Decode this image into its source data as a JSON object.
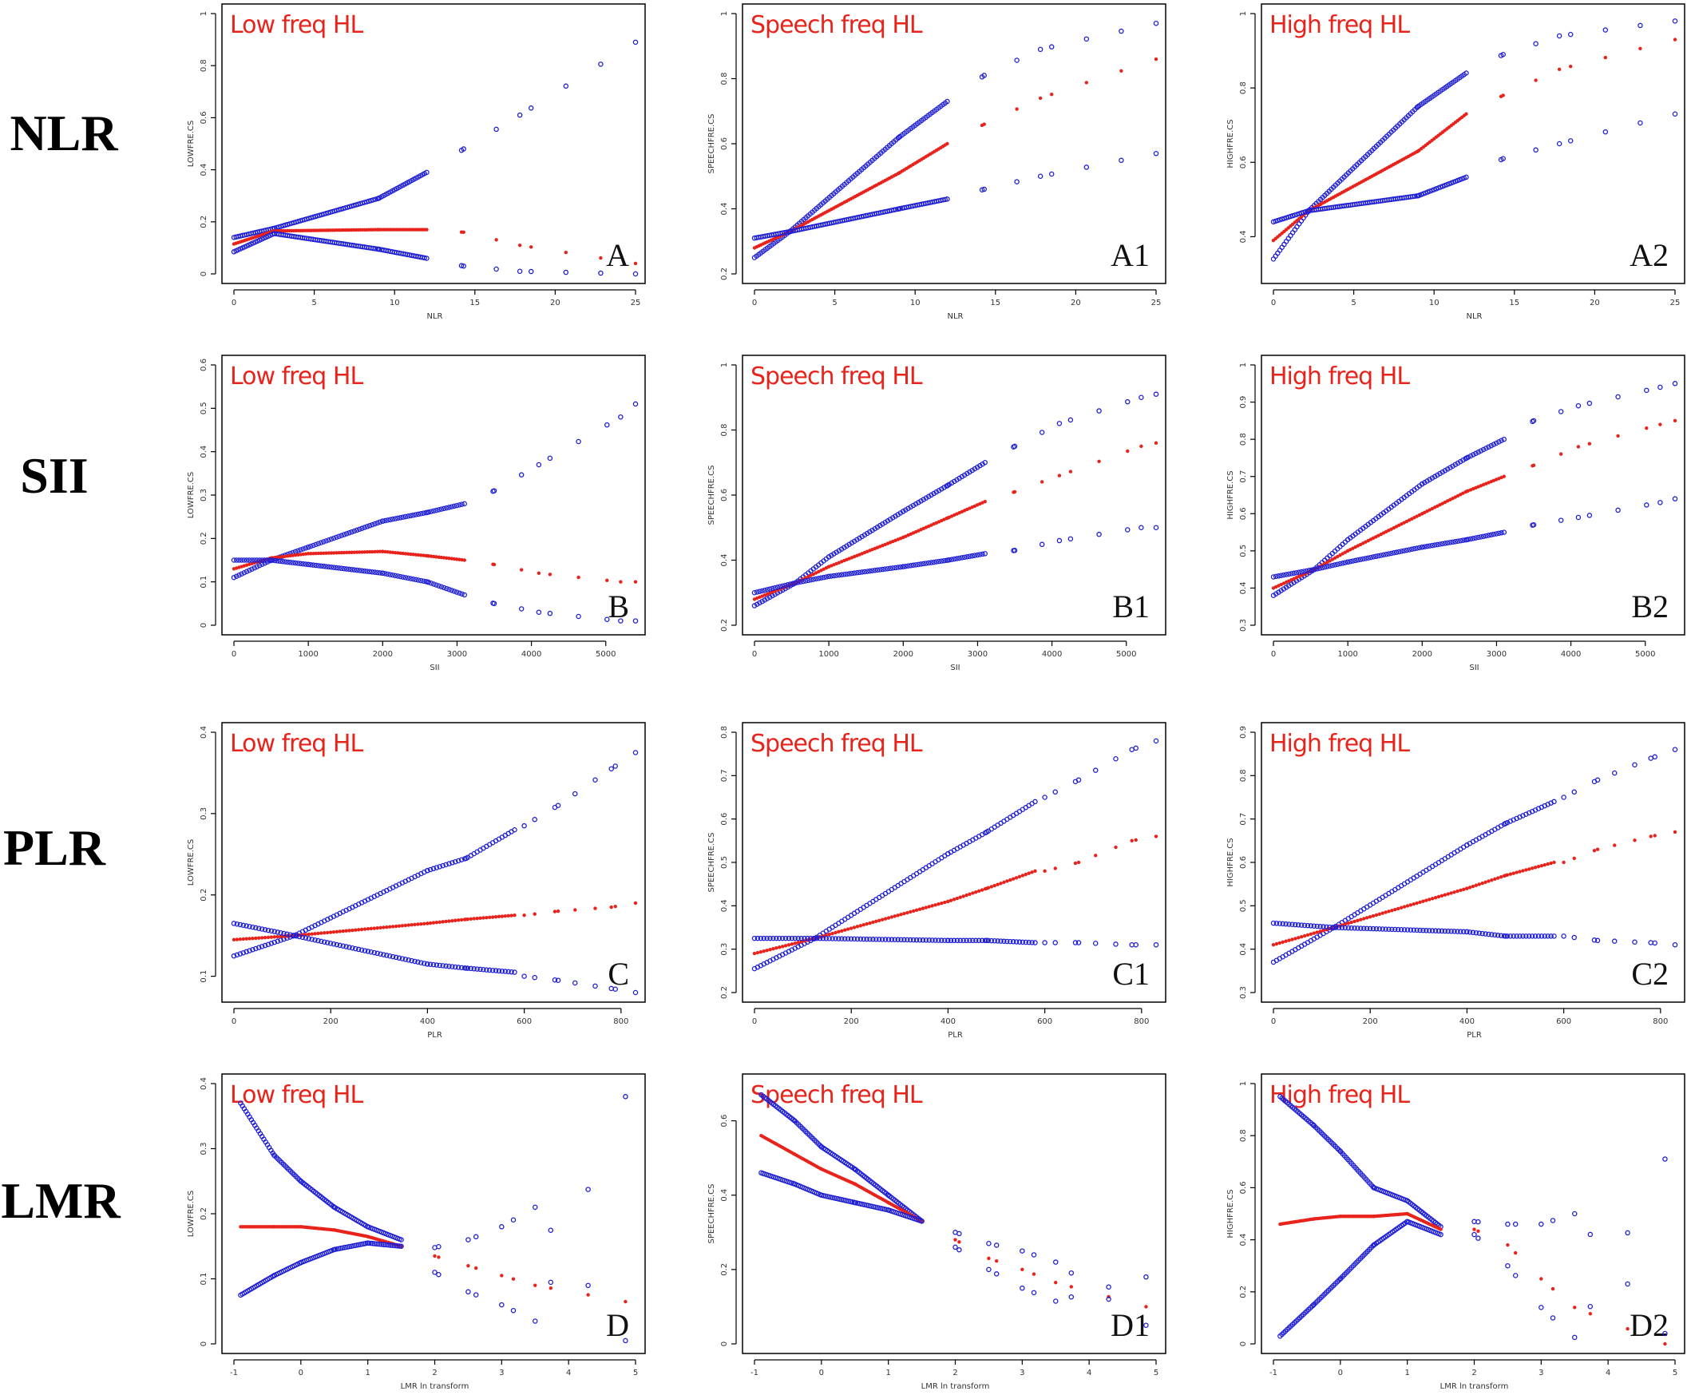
{
  "figure": {
    "row_labels": [
      "NLR",
      "SII",
      "PLR",
      "LMR"
    ]
  },
  "chart_data": [
    {
      "id": "A",
      "type": "scatter",
      "row": "NLR",
      "title": "Low freq HL",
      "xlabel": "NLR",
      "ylabel": "LOWFRE.CS",
      "xlim": [
        0,
        25
      ],
      "ylim": [
        0,
        1
      ],
      "xticks": [
        0,
        5,
        10,
        15,
        20,
        25
      ],
      "yticks": [
        0,
        0.2,
        0.4,
        0.6,
        0.8,
        1
      ],
      "panel_letter": "A",
      "x": [
        0,
        2.5,
        9,
        12,
        14.3,
        17.8,
        25
      ],
      "series": [
        {
          "name": "upper",
          "values": [
            0.14,
            0.175,
            0.29,
            0.39,
            0.48,
            0.61,
            0.89
          ]
        },
        {
          "name": "estimate",
          "values": [
            0.115,
            0.165,
            0.17,
            0.17,
            0.16,
            0.11,
            0.04
          ]
        },
        {
          "name": "lower",
          "values": [
            0.085,
            0.155,
            0.095,
            0.06,
            0.03,
            0.01,
            0.0
          ]
        }
      ]
    },
    {
      "id": "A1",
      "type": "scatter",
      "row": "NLR",
      "title": "Speech freq HL",
      "xlabel": "NLR",
      "ylabel": "SPEECHFRE.CS",
      "xlim": [
        0,
        25
      ],
      "ylim": [
        0.2,
        1
      ],
      "xticks": [
        0,
        5,
        10,
        15,
        20,
        25
      ],
      "yticks": [
        0.2,
        0.4,
        0.6,
        0.8,
        1
      ],
      "panel_letter": "A1",
      "x": [
        0,
        2.2,
        9,
        12,
        14.3,
        17.8,
        25
      ],
      "series": [
        {
          "name": "upper",
          "values": [
            0.25,
            0.33,
            0.62,
            0.73,
            0.81,
            0.89,
            0.97
          ]
        },
        {
          "name": "estimate",
          "values": [
            0.28,
            0.33,
            0.51,
            0.6,
            0.66,
            0.74,
            0.86
          ]
        },
        {
          "name": "lower",
          "values": [
            0.31,
            0.33,
            0.4,
            0.43,
            0.46,
            0.5,
            0.57
          ]
        }
      ]
    },
    {
      "id": "A2",
      "type": "scatter",
      "row": "NLR",
      "title": "High freq HL",
      "xlabel": "NLR",
      "ylabel": "HIGHFRE.CS",
      "xlim": [
        0,
        25
      ],
      "ylim": [
        0.3,
        1
      ],
      "xticks": [
        0,
        5,
        10,
        15,
        20,
        25
      ],
      "yticks": [
        0.4,
        0.6,
        0.8,
        1
      ],
      "panel_letter": "A2",
      "x": [
        0,
        2.2,
        9,
        12,
        14.3,
        17.8,
        25
      ],
      "series": [
        {
          "name": "upper",
          "values": [
            0.34,
            0.47,
            0.75,
            0.84,
            0.89,
            0.94,
            0.98
          ]
        },
        {
          "name": "estimate",
          "values": [
            0.39,
            0.47,
            0.63,
            0.73,
            0.78,
            0.85,
            0.93
          ]
        },
        {
          "name": "lower",
          "values": [
            0.44,
            0.47,
            0.51,
            0.56,
            0.61,
            0.65,
            0.73
          ]
        }
      ]
    },
    {
      "id": "B",
      "type": "scatter",
      "row": "SII",
      "title": "Low freq HL",
      "xlabel": "SII",
      "ylabel": "LOWFRE.CS",
      "xlim": [
        0,
        5400
      ],
      "ylim": [
        0,
        0.6
      ],
      "xticks": [
        0,
        1000,
        2000,
        3000,
        4000,
        5000
      ],
      "yticks": [
        0,
        0.1,
        0.2,
        0.3,
        0.4,
        0.5,
        0.6
      ],
      "panel_letter": "B",
      "x": [
        0,
        500,
        1000,
        2000,
        2600,
        3100,
        3500,
        4100,
        5200,
        5400
      ],
      "series": [
        {
          "name": "upper",
          "values": [
            0.11,
            0.15,
            0.18,
            0.24,
            0.26,
            0.28,
            0.31,
            0.37,
            0.48,
            0.51
          ]
        },
        {
          "name": "estimate",
          "values": [
            0.13,
            0.155,
            0.165,
            0.17,
            0.16,
            0.15,
            0.14,
            0.12,
            0.1,
            0.1
          ]
        },
        {
          "name": "lower",
          "values": [
            0.15,
            0.15,
            0.14,
            0.12,
            0.1,
            0.07,
            0.05,
            0.03,
            0.01,
            0.01
          ]
        }
      ]
    },
    {
      "id": "B1",
      "type": "scatter",
      "row": "SII",
      "title": "Speech freq HL",
      "xlabel": "SII",
      "ylabel": "SPEECHFRE.CS",
      "xlim": [
        0,
        5400
      ],
      "ylim": [
        0.2,
        1
      ],
      "xticks": [
        0,
        1000,
        2000,
        3000,
        4000,
        5000
      ],
      "yticks": [
        0.2,
        0.4,
        0.6,
        0.8,
        1
      ],
      "panel_letter": "B1",
      "x": [
        0,
        550,
        1000,
        2000,
        2600,
        3100,
        3500,
        4100,
        5200,
        5400
      ],
      "series": [
        {
          "name": "upper",
          "values": [
            0.26,
            0.33,
            0.41,
            0.55,
            0.63,
            0.7,
            0.75,
            0.82,
            0.9,
            0.91
          ]
        },
        {
          "name": "estimate",
          "values": [
            0.28,
            0.33,
            0.38,
            0.47,
            0.53,
            0.58,
            0.61,
            0.66,
            0.75,
            0.76
          ]
        },
        {
          "name": "lower",
          "values": [
            0.3,
            0.33,
            0.35,
            0.38,
            0.4,
            0.42,
            0.43,
            0.46,
            0.5,
            0.5
          ]
        }
      ]
    },
    {
      "id": "B2",
      "type": "scatter",
      "row": "SII",
      "title": "High freq HL",
      "xlabel": "SII",
      "ylabel": "HIGHFRE.CS",
      "xlim": [
        0,
        5400
      ],
      "ylim": [
        0.3,
        1
      ],
      "xticks": [
        0,
        1000,
        2000,
        3000,
        4000,
        5000
      ],
      "yticks": [
        0.3,
        0.4,
        0.5,
        0.6,
        0.7,
        0.8,
        0.9,
        1
      ],
      "panel_letter": "B2",
      "x": [
        0,
        550,
        1000,
        2000,
        2600,
        3100,
        3500,
        4100,
        5200,
        5400
      ],
      "series": [
        {
          "name": "upper",
          "values": [
            0.38,
            0.45,
            0.53,
            0.68,
            0.75,
            0.8,
            0.85,
            0.89,
            0.94,
            0.95
          ]
        },
        {
          "name": "estimate",
          "values": [
            0.4,
            0.45,
            0.5,
            0.6,
            0.66,
            0.7,
            0.73,
            0.78,
            0.84,
            0.85
          ]
        },
        {
          "name": "lower",
          "values": [
            0.43,
            0.45,
            0.47,
            0.51,
            0.53,
            0.55,
            0.57,
            0.59,
            0.63,
            0.64
          ]
        }
      ]
    },
    {
      "id": "C",
      "type": "scatter",
      "row": "PLR",
      "title": "Low freq HL",
      "xlabel": "PLR",
      "ylabel": "LOWFRE.CS",
      "xlim": [
        0,
        830
      ],
      "ylim": [
        0.08,
        0.4
      ],
      "xticks": [
        0,
        200,
        400,
        600,
        800
      ],
      "yticks": [
        0.1,
        0.2,
        0.3,
        0.4
      ],
      "panel_letter": "C",
      "x": [
        0,
        125,
        400,
        480,
        580,
        600,
        670,
        780,
        830
      ],
      "series": [
        {
          "name": "upper",
          "values": [
            0.125,
            0.15,
            0.23,
            0.245,
            0.28,
            0.285,
            0.31,
            0.355,
            0.375
          ]
        },
        {
          "name": "estimate",
          "values": [
            0.145,
            0.15,
            0.165,
            0.17,
            0.175,
            0.175,
            0.18,
            0.185,
            0.19
          ]
        },
        {
          "name": "lower",
          "values": [
            0.165,
            0.15,
            0.115,
            0.11,
            0.105,
            0.1,
            0.095,
            0.085,
            0.08
          ]
        }
      ]
    },
    {
      "id": "C1",
      "type": "scatter",
      "row": "PLR",
      "title": "Speech freq HL",
      "xlabel": "PLR",
      "ylabel": "SPEECHFRE.CS",
      "xlim": [
        0,
        830
      ],
      "ylim": [
        0.2,
        0.8
      ],
      "xticks": [
        0,
        200,
        400,
        600,
        800
      ],
      "yticks": [
        0.2,
        0.3,
        0.4,
        0.5,
        0.6,
        0.7,
        0.8
      ],
      "panel_letter": "C1",
      "x": [
        0,
        125,
        400,
        480,
        580,
        600,
        670,
        780,
        830
      ],
      "series": [
        {
          "name": "upper",
          "values": [
            0.255,
            0.325,
            0.52,
            0.57,
            0.64,
            0.65,
            0.69,
            0.76,
            0.78
          ]
        },
        {
          "name": "estimate",
          "values": [
            0.29,
            0.325,
            0.41,
            0.44,
            0.48,
            0.48,
            0.5,
            0.55,
            0.56
          ]
        },
        {
          "name": "lower",
          "values": [
            0.325,
            0.325,
            0.32,
            0.32,
            0.315,
            0.315,
            0.315,
            0.31,
            0.31
          ]
        }
      ]
    },
    {
      "id": "C2",
      "type": "scatter",
      "row": "PLR",
      "title": "High freq HL",
      "xlabel": "PLR",
      "ylabel": "HIGHFRE.CS",
      "xlim": [
        0,
        830
      ],
      "ylim": [
        0.3,
        0.9
      ],
      "xticks": [
        0,
        200,
        400,
        600,
        800
      ],
      "yticks": [
        0.3,
        0.4,
        0.5,
        0.6,
        0.7,
        0.8,
        0.9
      ],
      "panel_letter": "C2",
      "x": [
        0,
        125,
        400,
        480,
        580,
        600,
        670,
        780,
        830
      ],
      "series": [
        {
          "name": "upper",
          "values": [
            0.37,
            0.45,
            0.64,
            0.69,
            0.74,
            0.75,
            0.79,
            0.84,
            0.86
          ]
        },
        {
          "name": "estimate",
          "values": [
            0.41,
            0.45,
            0.54,
            0.57,
            0.6,
            0.6,
            0.63,
            0.66,
            0.67
          ]
        },
        {
          "name": "lower",
          "values": [
            0.46,
            0.45,
            0.44,
            0.43,
            0.43,
            0.43,
            0.42,
            0.415,
            0.41
          ]
        }
      ]
    },
    {
      "id": "D",
      "type": "scatter",
      "row": "LMR",
      "title": "Low freq HL",
      "xlabel": "LMR ln transform",
      "ylabel": "LOWFRE.CS",
      "xlim": [
        -1,
        5
      ],
      "ylim": [
        0,
        0.4
      ],
      "xticks": [
        -1,
        0,
        1,
        2,
        3,
        4,
        5
      ],
      "yticks": [
        0,
        0.1,
        0.2,
        0.3,
        0.4
      ],
      "panel_letter": "D",
      "x": [
        -0.9,
        -0.4,
        0,
        0.5,
        1,
        1.5,
        2,
        2.5,
        3,
        3.5,
        4.85
      ],
      "series": [
        {
          "name": "upper",
          "values": [
            0.37,
            0.29,
            0.25,
            0.21,
            0.18,
            0.16,
            0.11,
            0.08,
            0.06,
            0.035,
            0.38
          ]
        },
        {
          "name": "estimate",
          "values": [
            0.18,
            0.18,
            0.18,
            0.175,
            0.165,
            0.15,
            0.135,
            0.12,
            0.105,
            0.09,
            0.065
          ]
        },
        {
          "name": "lower",
          "values": [
            0.075,
            0.105,
            0.125,
            0.145,
            0.155,
            0.15,
            0.148,
            0.16,
            0.18,
            0.21,
            0.005
          ]
        }
      ]
    },
    {
      "id": "D1",
      "type": "scatter",
      "row": "LMR",
      "title": "Speech freq HL",
      "xlabel": "LMR ln transform",
      "ylabel": "SPEECHFRE.CS",
      "xlim": [
        -1,
        5
      ],
      "ylim": [
        0,
        0.7
      ],
      "xticks": [
        -1,
        0,
        1,
        2,
        3,
        4,
        5
      ],
      "yticks": [
        0,
        0.2,
        0.4,
        0.6
      ],
      "panel_letter": "D1",
      "x": [
        -0.9,
        -0.4,
        0,
        0.5,
        1,
        1.5,
        2,
        2.5,
        3,
        3.5,
        4.85
      ],
      "series": [
        {
          "name": "upper",
          "values": [
            0.67,
            0.6,
            0.53,
            0.47,
            0.4,
            0.33,
            0.26,
            0.2,
            0.15,
            0.115,
            0.18
          ]
        },
        {
          "name": "estimate",
          "values": [
            0.56,
            0.51,
            0.47,
            0.43,
            0.38,
            0.33,
            0.28,
            0.23,
            0.2,
            0.165,
            0.1
          ]
        },
        {
          "name": "lower",
          "values": [
            0.46,
            0.43,
            0.4,
            0.38,
            0.36,
            0.33,
            0.3,
            0.27,
            0.25,
            0.22,
            0.05
          ]
        }
      ]
    },
    {
      "id": "D2",
      "type": "scatter",
      "row": "LMR",
      "title": "High freq HL",
      "xlabel": "LMR ln transform",
      "ylabel": "HIGHFRE.CS",
      "xlim": [
        -1,
        5
      ],
      "ylim": [
        0,
        1
      ],
      "xticks": [
        -1,
        0,
        1,
        2,
        3,
        4,
        5
      ],
      "yticks": [
        0,
        0.2,
        0.4,
        0.6,
        0.8,
        1
      ],
      "panel_letter": "D2",
      "x": [
        -0.9,
        -0.4,
        0,
        0.5,
        1,
        1.5,
        2,
        2.5,
        3,
        3.5,
        4.85
      ],
      "series": [
        {
          "name": "upper",
          "values": [
            0.95,
            0.84,
            0.74,
            0.6,
            0.55,
            0.45,
            0.42,
            0.3,
            0.14,
            0.025,
            0.71
          ]
        },
        {
          "name": "estimate",
          "values": [
            0.46,
            0.48,
            0.49,
            0.49,
            0.5,
            0.44,
            0.44,
            0.38,
            0.25,
            0.14,
            0.0
          ]
        },
        {
          "name": "lower",
          "values": [
            0.03,
            0.15,
            0.25,
            0.38,
            0.47,
            0.42,
            0.47,
            0.46,
            0.46,
            0.5,
            0.04
          ]
        }
      ]
    }
  ]
}
